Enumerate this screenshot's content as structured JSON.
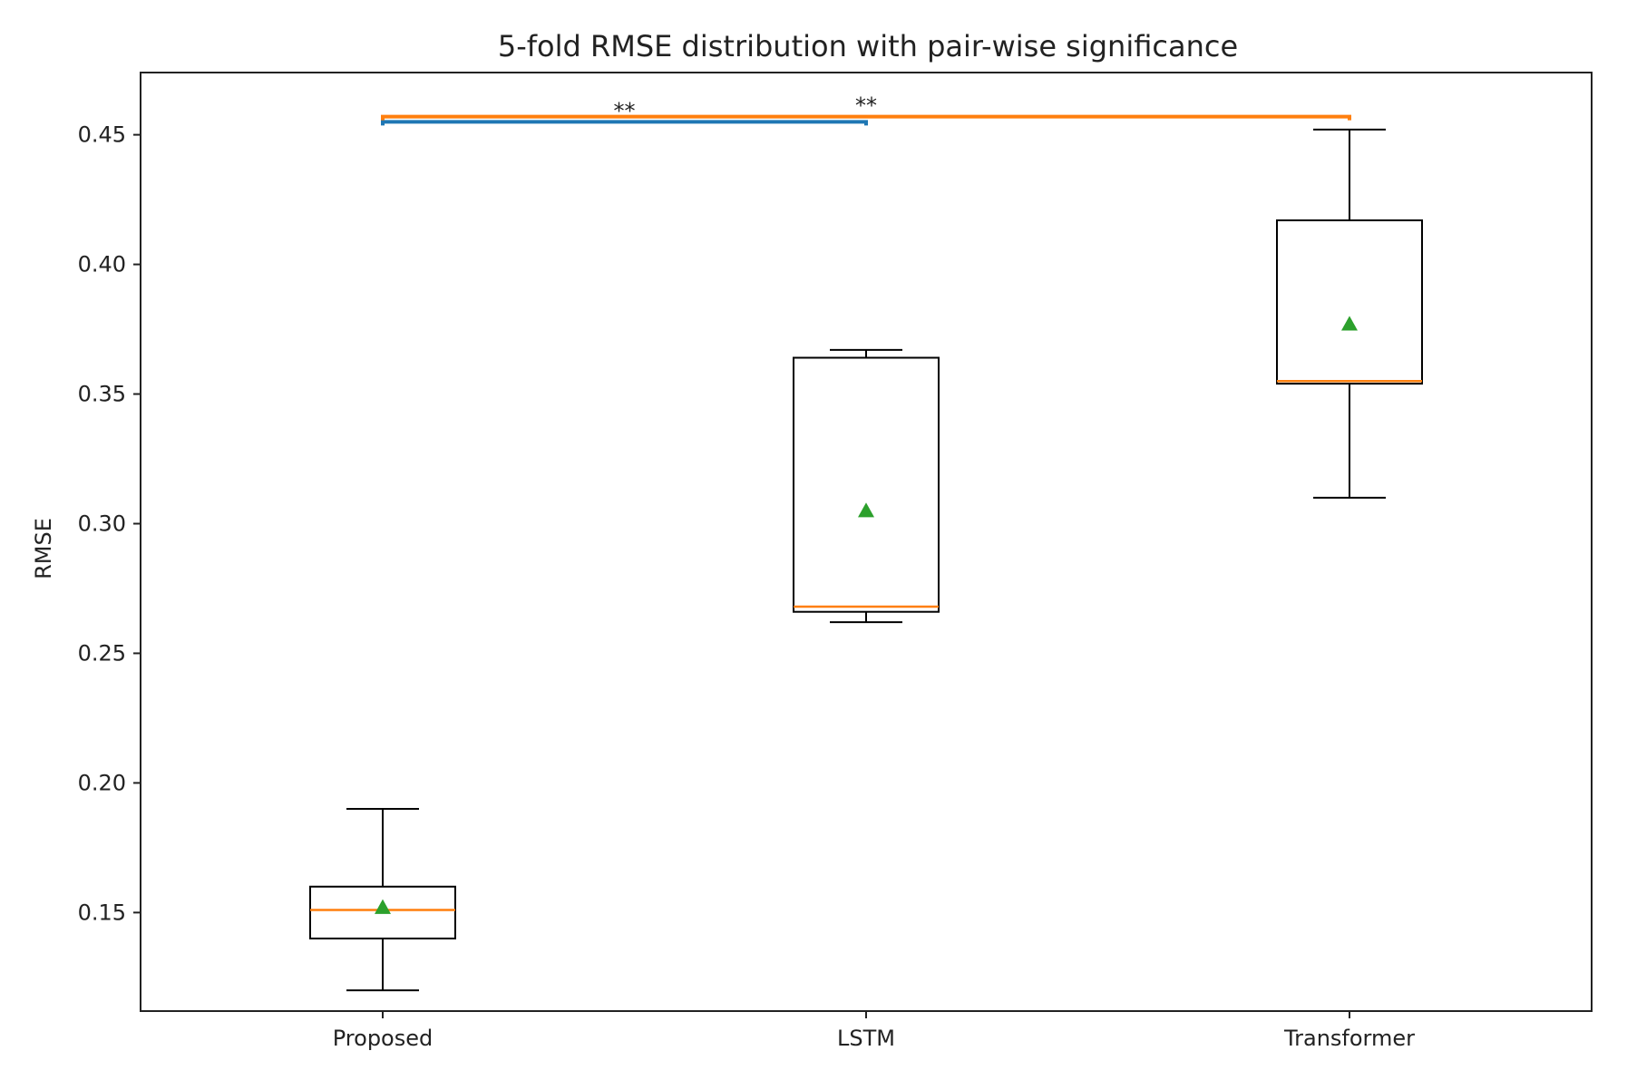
{
  "chart_data": {
    "type": "box",
    "title": "5-fold RMSE distribution with pair-wise significance",
    "xlabel": "",
    "ylabel": "RMSE",
    "ylim": [
      0.112,
      0.474
    ],
    "yticks": [
      "0.15",
      "0.20",
      "0.25",
      "0.30",
      "0.35",
      "0.40",
      "0.45"
    ],
    "ytick_values": [
      0.15,
      0.2,
      0.25,
      0.3,
      0.35,
      0.4,
      0.45
    ],
    "categories": [
      "Proposed",
      "LSTM",
      "Transformer"
    ],
    "boxes": [
      {
        "category": "Proposed",
        "whisker_low": 0.12,
        "q1": 0.14,
        "median": 0.151,
        "q3": 0.16,
        "whisker_high": 0.19,
        "mean": 0.152
      },
      {
        "category": "LSTM",
        "whisker_low": 0.262,
        "q1": 0.266,
        "median": 0.268,
        "q3": 0.364,
        "whisker_high": 0.367,
        "mean": 0.305
      },
      {
        "category": "Transformer",
        "whisker_low": 0.31,
        "q1": 0.354,
        "median": 0.355,
        "q3": 0.417,
        "whisker_high": 0.452,
        "mean": 0.377
      }
    ],
    "significance": [
      {
        "from": "Proposed",
        "to": "LSTM",
        "label": "**",
        "level": 0.455,
        "color": "#1f77b4"
      },
      {
        "from": "Proposed",
        "to": "Transformer",
        "label": "**",
        "level": 0.457,
        "color": "#ff7f0e"
      }
    ],
    "colors": {
      "box": "#000000",
      "median": "#ff7f0e",
      "mean_marker": "#2ca02c"
    },
    "grid": false,
    "legend": "none"
  }
}
